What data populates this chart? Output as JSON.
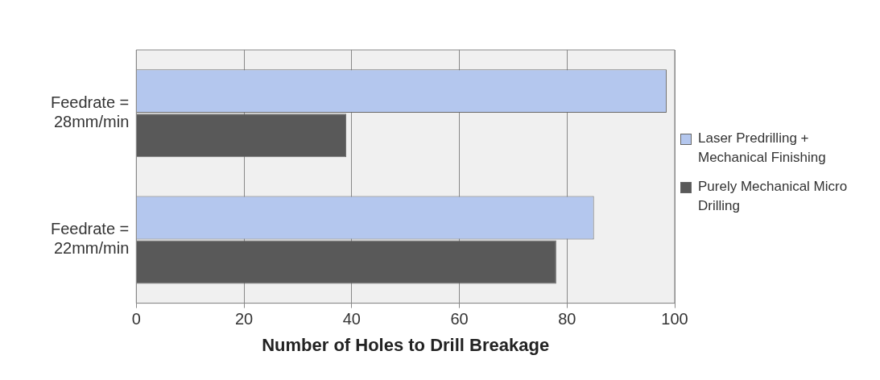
{
  "chart_data": {
    "type": "bar",
    "orientation": "horizontal",
    "xlabel": "Number of Holes to Drill Breakage",
    "categories": [
      "Feedrate = 28mm/min",
      "Feedrate = 22mm/min"
    ],
    "series": [
      {
        "name": "Laser Predrilling + Mechanical Finishing",
        "color": "#b4c7ee",
        "values": [
          98.5,
          85
        ]
      },
      {
        "name": "Purely Mechanical Micro Drilling",
        "color": "#595959",
        "values": [
          39,
          78
        ]
      }
    ],
    "xlim": [
      0,
      100
    ],
    "xticks": [
      0,
      20,
      40,
      60,
      80,
      100
    ],
    "grid": "x",
    "legend": "right"
  }
}
